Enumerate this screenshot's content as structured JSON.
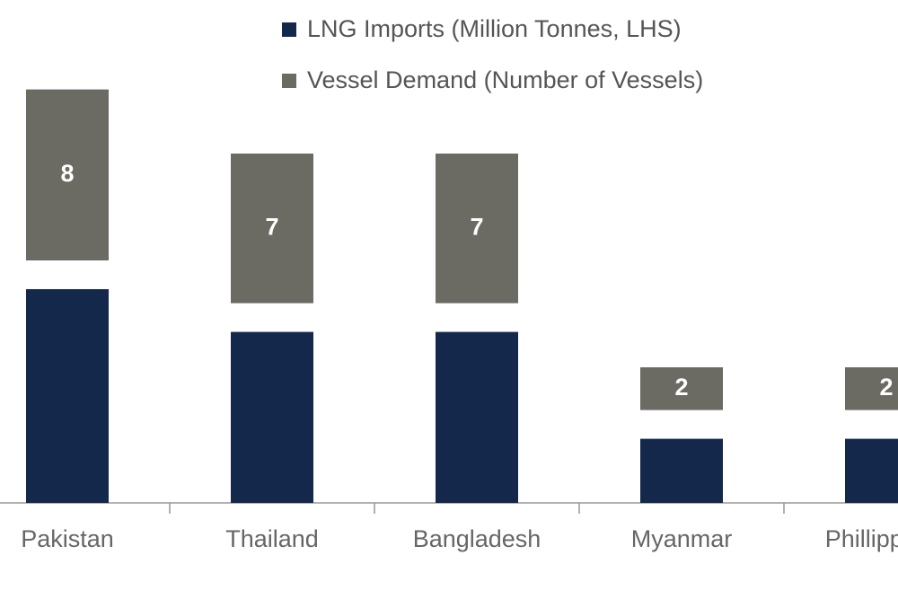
{
  "chart_data": {
    "type": "bar",
    "categories": [
      "Pakistan",
      "Thailand",
      "Bangladesh",
      "Myanmar",
      "Phillippines"
    ],
    "series": [
      {
        "name": "LNG Imports (Million Tonnes, LHS)",
        "color": "#14284b",
        "values": [
          10,
          8,
          8,
          3,
          3
        ]
      },
      {
        "name": "Vessel Demand (Number of Vessels)",
        "color": "#6b6b64",
        "values": [
          8,
          7,
          7,
          2,
          2
        ]
      }
    ]
  }
}
